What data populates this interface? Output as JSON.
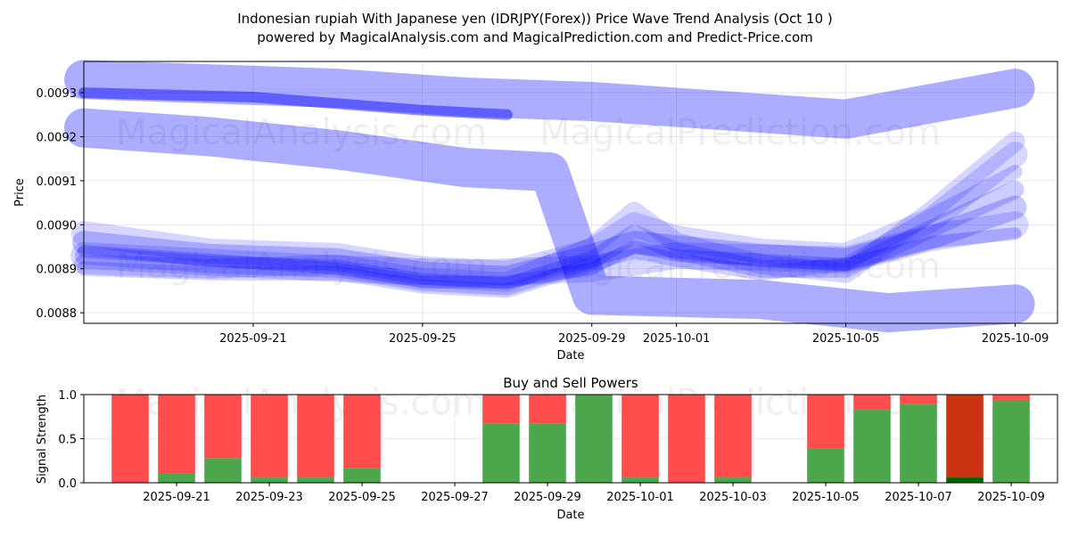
{
  "chart_data": [
    {
      "type": "line",
      "title_line1": "Indonesian rupiah With Japanese yen (IDRJPY(Forex)) Price Wave Trend Analysis (Oct 10 )",
      "title_line2": "powered by MagicalAnalysis.com and MagicalPrediction.com and Predict-Price.com",
      "xlabel": "Date",
      "ylabel": "Price",
      "xlim": [
        "2025-09-17",
        "2025-10-10"
      ],
      "ylim": [
        0.008776,
        0.009371
      ],
      "xticks": [
        "2025-09-21",
        "2025-09-25",
        "2025-09-29",
        "2025-10-01",
        "2025-10-05",
        "2025-10-09"
      ],
      "yticks": [
        0.0088,
        0.0089,
        0.009,
        0.0091,
        0.0092,
        0.0093
      ],
      "ytick_labels": [
        "0.0088",
        "0.0089",
        "0.0090",
        "0.0091",
        "0.0092",
        "0.0093"
      ],
      "series_color": "#0000ff",
      "series": [
        {
          "name": "upper-wave",
          "x": [
            "2025-09-17",
            "2025-09-20",
            "2025-09-23",
            "2025-09-26",
            "2025-09-29",
            "2025-10-02",
            "2025-10-05",
            "2025-10-09"
          ],
          "values": [
            0.00933,
            0.00932,
            0.00931,
            0.00929,
            0.00928,
            0.00926,
            0.00924,
            0.00931
          ]
        },
        {
          "name": "falling-wave",
          "x": [
            "2025-09-17",
            "2025-09-20",
            "2025-09-23",
            "2025-09-26",
            "2025-09-28",
            "2025-09-29",
            "2025-10-03",
            "2025-10-06",
            "2025-10-09"
          ],
          "values": [
            0.00922,
            0.0092,
            0.00917,
            0.00913,
            0.00912,
            0.00884,
            0.00883,
            0.0088,
            0.00882
          ]
        },
        {
          "name": "thin-upper",
          "x": [
            "2025-09-17",
            "2025-09-21",
            "2025-09-25",
            "2025-09-27"
          ],
          "values": [
            0.0093,
            0.00929,
            0.00926,
            0.00925
          ]
        },
        {
          "name": "cluster-1",
          "x": [
            "2025-09-17",
            "2025-09-20",
            "2025-09-23",
            "2025-09-25",
            "2025-09-27",
            "2025-09-29",
            "2025-09-30",
            "2025-10-01",
            "2025-10-03",
            "2025-10-05",
            "2025-10-07",
            "2025-10-09"
          ],
          "values": [
            0.00896,
            0.00893,
            0.00892,
            0.00889,
            0.00888,
            0.00893,
            0.00896,
            0.00895,
            0.00893,
            0.00892,
            0.00897,
            0.00904
          ]
        },
        {
          "name": "cluster-2",
          "x": [
            "2025-09-17",
            "2025-09-20",
            "2025-09-23",
            "2025-09-25",
            "2025-09-27",
            "2025-09-29",
            "2025-09-30",
            "2025-10-01",
            "2025-10-03",
            "2025-10-05",
            "2025-10-07",
            "2025-10-09"
          ],
          "values": [
            0.00893,
            0.00891,
            0.0089,
            0.00887,
            0.00886,
            0.00892,
            0.00898,
            0.00894,
            0.0089,
            0.0089,
            0.00899,
            0.00908
          ]
        },
        {
          "name": "cluster-3",
          "x": [
            "2025-09-17",
            "2025-09-20",
            "2025-09-23",
            "2025-09-25",
            "2025-09-27",
            "2025-09-29",
            "2025-09-30",
            "2025-10-01",
            "2025-10-03",
            "2025-10-05",
            "2025-10-07",
            "2025-10-09"
          ],
          "values": [
            0.0089,
            0.00889,
            0.00889,
            0.00886,
            0.00885,
            0.00891,
            0.00894,
            0.00892,
            0.00889,
            0.00891,
            0.00902,
            0.00912
          ]
        },
        {
          "name": "cluster-4",
          "x": [
            "2025-09-17",
            "2025-09-20",
            "2025-09-23",
            "2025-09-25",
            "2025-09-27",
            "2025-09-29",
            "2025-09-30",
            "2025-10-01",
            "2025-10-03",
            "2025-10-05",
            "2025-10-07",
            "2025-10-09"
          ],
          "values": [
            0.00898,
            0.00894,
            0.00893,
            0.0089,
            0.00889,
            0.00894,
            0.009,
            0.00897,
            0.00894,
            0.00893,
            0.00901,
            0.00916
          ]
        },
        {
          "name": "cluster-5",
          "x": [
            "2025-09-17",
            "2025-09-20",
            "2025-09-23",
            "2025-09-25",
            "2025-09-27",
            "2025-09-29",
            "2025-09-30",
            "2025-10-01",
            "2025-10-03",
            "2025-10-05",
            "2025-10-07",
            "2025-10-09"
          ],
          "values": [
            0.00891,
            0.0089,
            0.00891,
            0.00888,
            0.00887,
            0.00895,
            0.00903,
            0.00896,
            0.00891,
            0.00889,
            0.00903,
            0.00919
          ]
        },
        {
          "name": "cluster-6",
          "x": [
            "2025-09-17",
            "2025-09-20",
            "2025-09-23",
            "2025-09-25",
            "2025-09-27",
            "2025-09-29",
            "2025-09-30",
            "2025-10-01",
            "2025-10-03",
            "2025-10-05",
            "2025-10-07",
            "2025-10-09"
          ],
          "values": [
            0.00894,
            0.00892,
            0.0089,
            0.00887,
            0.00887,
            0.0089,
            0.00895,
            0.00893,
            0.00892,
            0.00891,
            0.00896,
            0.00898
          ]
        },
        {
          "name": "lower-band",
          "x": [
            "2025-09-17",
            "2025-09-21",
            "2025-09-23",
            "2025-09-26",
            "2025-09-29",
            "2025-10-01",
            "2025-10-05",
            "2025-10-07",
            "2025-10-09"
          ],
          "values": [
            0.00893,
            0.00891,
            0.0089,
            0.00889,
            0.0089,
            0.00893,
            0.00892,
            0.00897,
            0.009
          ]
        }
      ]
    },
    {
      "type": "bar",
      "title": "Buy and Sell Powers",
      "xlabel": "Date",
      "ylabel": "Signal Strength",
      "xlim": [
        "2025-09-19",
        "2025-10-10"
      ],
      "ylim": [
        0,
        1
      ],
      "xticks": [
        "2025-09-21",
        "2025-09-23",
        "2025-09-25",
        "2025-09-27",
        "2025-09-29",
        "2025-10-01",
        "2025-10-03",
        "2025-10-05",
        "2025-10-07",
        "2025-10-09"
      ],
      "yticks": [
        0,
        0.5,
        1
      ],
      "ytick_labels": [
        "0.0",
        "0.5",
        "1.0"
      ],
      "buy_color": "#4ca64c",
      "sell_color": "#ff4c4c",
      "dark_buy_color": "#006400",
      "dark_sell_color": "#cc3311",
      "dates": [
        "2025-09-20",
        "2025-09-21",
        "2025-09-22",
        "2025-09-23",
        "2025-09-24",
        "2025-09-25",
        "2025-09-28",
        "2025-09-29",
        "2025-09-30",
        "2025-10-01",
        "2025-10-02",
        "2025-10-03",
        "2025-10-05",
        "2025-10-06",
        "2025-10-07",
        "2025-10-08",
        "2025-10-09"
      ],
      "buy": [
        0.0,
        0.11,
        0.28,
        0.06,
        0.06,
        0.17,
        0.67,
        0.67,
        1.0,
        0.06,
        0.0,
        0.06,
        0.39,
        0.83,
        0.89,
        0.06,
        0.94
      ],
      "dark": [
        false,
        false,
        false,
        false,
        false,
        false,
        false,
        false,
        false,
        false,
        false,
        false,
        false,
        false,
        false,
        true,
        false
      ]
    }
  ],
  "watermark": {
    "left": "MagicalAnalysis.com",
    "right": "MagicalPrediction.com"
  }
}
